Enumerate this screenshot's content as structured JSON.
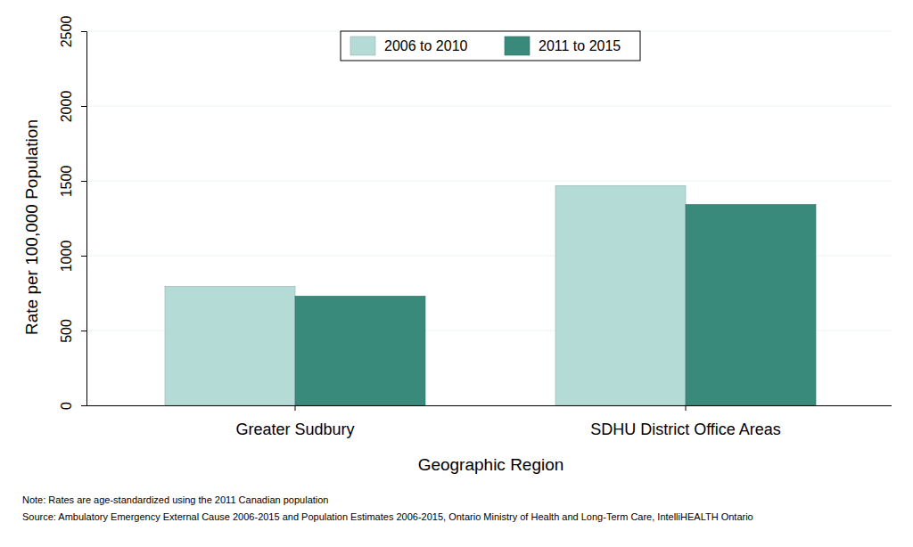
{
  "chart_data": {
    "type": "bar",
    "x_label": "Geographic Region",
    "y_label": "Rate per 100,000 Population",
    "categories": [
      "Greater Sudbury",
      "SDHU District Office Areas"
    ],
    "series": [
      {
        "name": "2006 to 2010",
        "color": "#b5dbd6",
        "values": [
          795,
          1468
        ]
      },
      {
        "name": "2011 to 2015",
        "color": "#3a8a7c",
        "values": [
          730,
          1342
        ]
      }
    ],
    "ylim": [
      0,
      2500
    ],
    "yticks": [
      0,
      500,
      1000,
      1500,
      2000,
      2500
    ],
    "grid": true,
    "legend": "top",
    "annotations": [
      "Note: Rates are age-standardized using the 2011 Canadian population",
      "Source: Ambulatory Emergency External Cause 2006-2015 and Population Estimates 2006-2015, Ontario Ministry of Health and Long-Term Care, IntelliHEALTH Ontario"
    ]
  }
}
